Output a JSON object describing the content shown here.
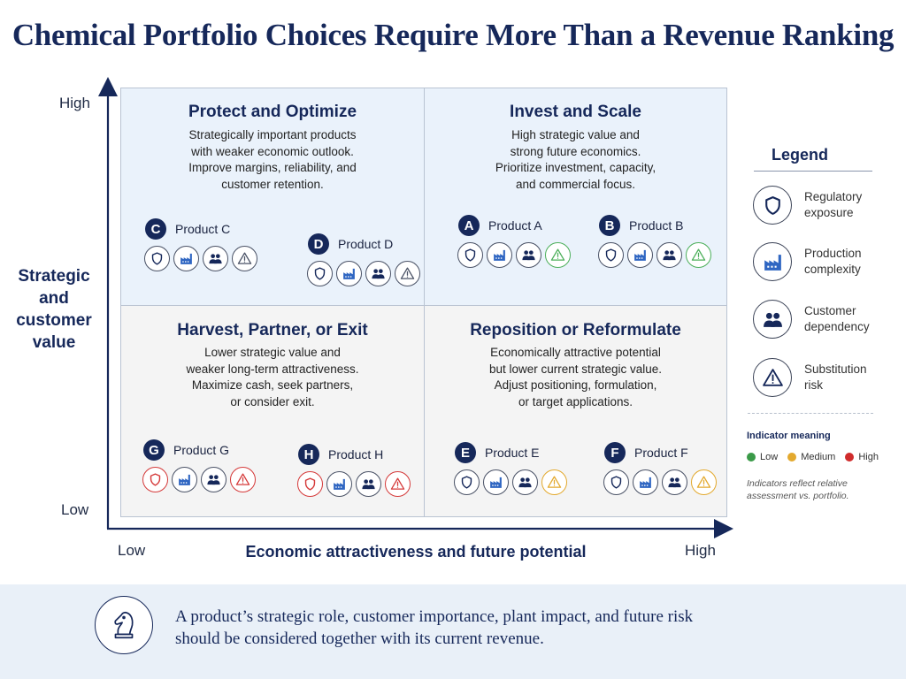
{
  "title": "Chemical Portfolio Choices Require More Than a Revenue Ranking",
  "axes": {
    "y_title": "Strategic and customer value",
    "y_high": "High",
    "y_low": "Low",
    "x_title": "Economic attractiveness and future potential",
    "x_low": "Low",
    "x_high": "High"
  },
  "quadrants": {
    "top_left": {
      "title": "Protect and Optimize",
      "desc": [
        "Strategically important products",
        "with weaker economic outlook.",
        "Improve margins, reliability, and",
        "customer retention."
      ]
    },
    "top_right": {
      "title": "Invest and Scale",
      "desc": [
        "High strategic value and",
        "strong future economics.",
        "Prioritize investment, capacity,",
        "and commercial focus."
      ]
    },
    "bottom_left": {
      "title": "Harvest, Partner, or Exit",
      "desc": [
        "Lower strategic value and",
        "weaker long-term attractiveness.",
        "Maximize cash, seek partners,",
        "or consider exit."
      ]
    },
    "bottom_right": {
      "title": "Reposition or Reformulate",
      "desc": [
        "Economically attractive potential",
        "but lower current strategic value.",
        "Adjust positioning, formulation,",
        "or target applications."
      ]
    }
  },
  "products": {
    "C": {
      "letter": "C",
      "name": "Product C",
      "risk_level": "none"
    },
    "D": {
      "letter": "D",
      "name": "Product D",
      "risk_level": "none"
    },
    "A": {
      "letter": "A",
      "name": "Product A",
      "risk_level": "low"
    },
    "B": {
      "letter": "B",
      "name": "Product B",
      "risk_level": "low"
    },
    "G": {
      "letter": "G",
      "name": "Product G",
      "risk_level": "high"
    },
    "H": {
      "letter": "H",
      "name": "Product H",
      "risk_level": "high"
    },
    "E": {
      "letter": "E",
      "name": "Product E",
      "risk_level": "medium"
    },
    "F": {
      "letter": "F",
      "name": "Product F",
      "risk_level": "medium"
    }
  },
  "legend": {
    "title": "Legend",
    "items": [
      {
        "icon": "shield-icon",
        "label_1": "Regulatory",
        "label_2": "exposure"
      },
      {
        "icon": "factory-icon",
        "label_1": "Production",
        "label_2": "complexity"
      },
      {
        "icon": "people-icon",
        "label_1": "Customer",
        "label_2": "dependency"
      },
      {
        "icon": "warning-icon",
        "label_1": "Substitution",
        "label_2": "risk"
      }
    ],
    "indicator_title": "Indicator meaning",
    "levels": [
      {
        "label": "Low",
        "color": "#3a9a48"
      },
      {
        "label": "Medium",
        "color": "#e3a92e"
      },
      {
        "label": "High",
        "color": "#d02c2c"
      }
    ],
    "note_1": "Indicators reflect relative",
    "note_2": "assessment vs. portfolio."
  },
  "footer": {
    "icon": "chess-knight-icon",
    "line_1": "A product’s strategic role, customer importance, plant impact, and future risk",
    "line_2": "should be considered together with its current revenue."
  },
  "colors": {
    "navy": "#16285a",
    "factory_blue": "#2f66c2",
    "low": "#4caf5a",
    "medium": "#e3a92e",
    "high": "#d53a3a"
  }
}
